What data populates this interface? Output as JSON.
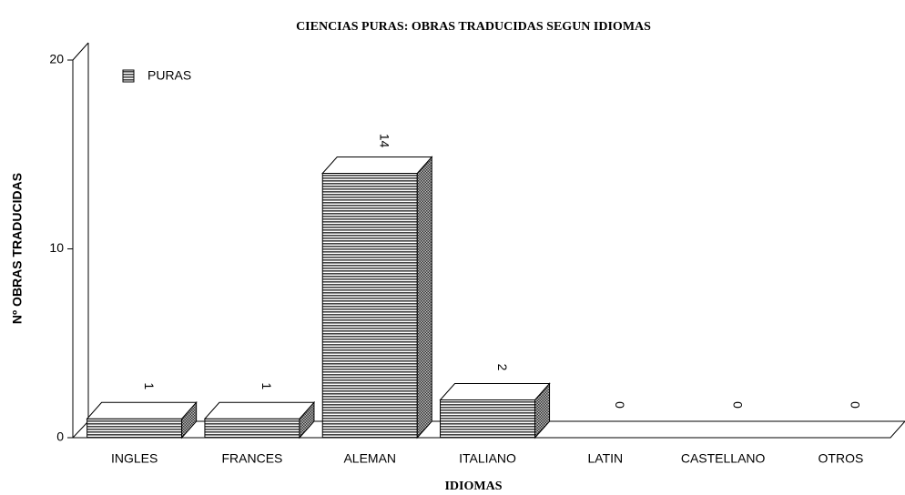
{
  "chart_data": {
    "type": "bar3d",
    "title": "CIENCIAS PURAS: OBRAS TRADUCIDAS SEGUN IDIOMAS",
    "xlabel": "IDIOMAS",
    "ylabel": "Nº OBRAS TRADUCIDAS",
    "categories": [
      "INGLES",
      "FRANCES",
      "ALEMAN",
      "ITALIANO",
      "LATIN",
      "CASTELLANO",
      "OTROS"
    ],
    "series": [
      {
        "name": "PURAS",
        "color": "#555555",
        "values": [
          1,
          1,
          14,
          2,
          0,
          0,
          0
        ]
      }
    ],
    "ylim": [
      0,
      20
    ],
    "yticks": [
      0,
      10,
      20
    ],
    "legend": "upper left"
  }
}
